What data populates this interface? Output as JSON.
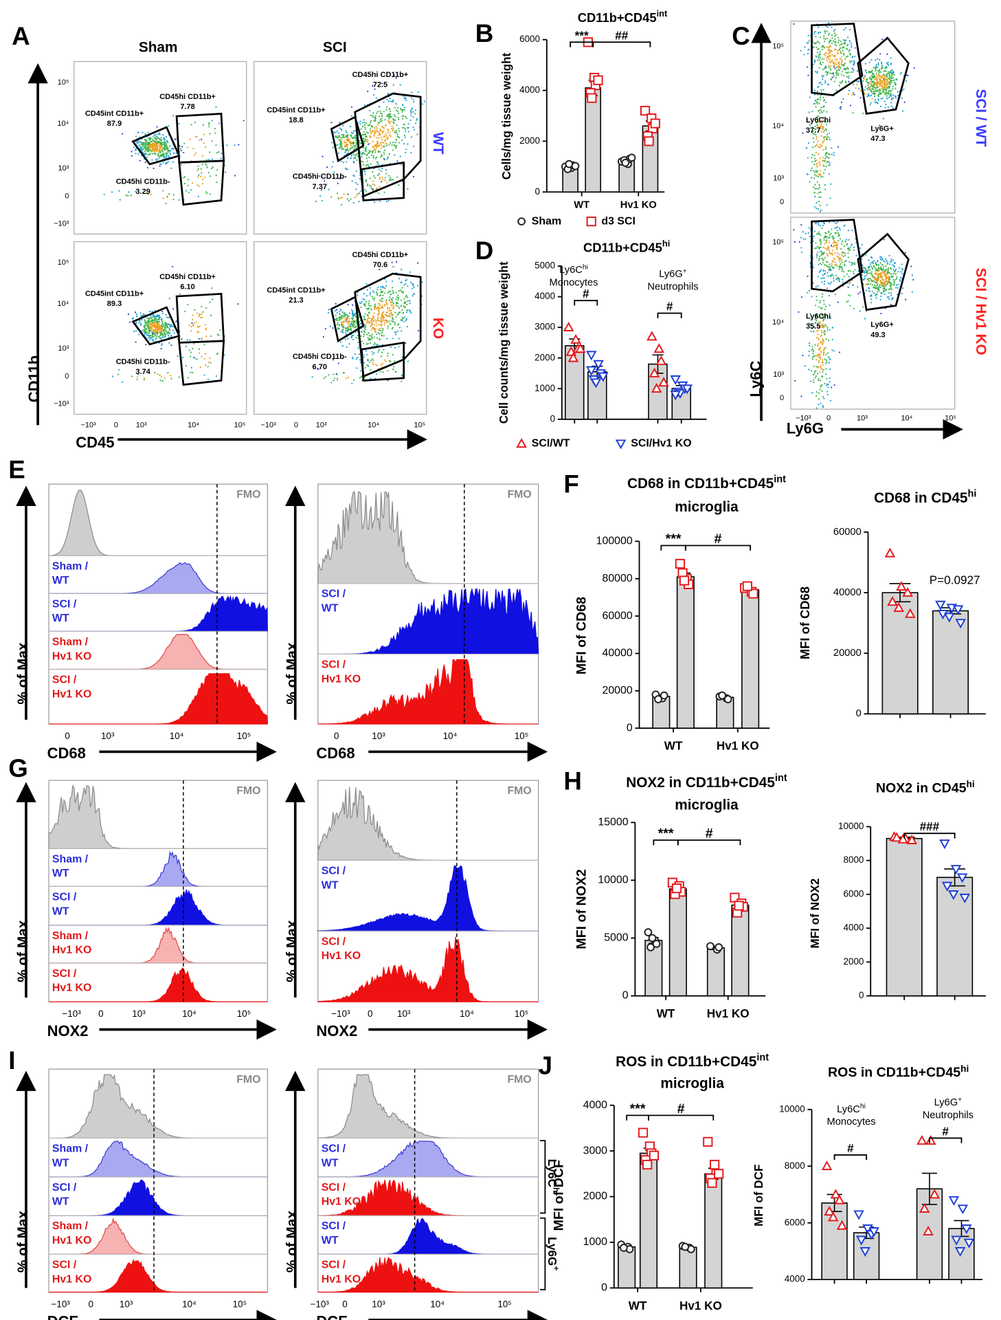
{
  "panel_letters": [
    "A",
    "B",
    "C",
    "D",
    "E",
    "F",
    "G",
    "H",
    "I",
    "J"
  ],
  "flow": {
    "A": {
      "col_titles": [
        "Sham",
        "SCI"
      ],
      "row_labels": [
        "WT",
        "KO"
      ],
      "row_colors": [
        "#3b3bff",
        "#ff2020"
      ],
      "y_label": "CD11b",
      "x_label": "CD45",
      "y_ticks": [
        "10⁵",
        "10⁴",
        "10³",
        "0",
        "−10³"
      ],
      "x_ticks": [
        "−10³",
        "0",
        "10³",
        "10⁴",
        "10⁵"
      ],
      "plots": [
        {
          "gates": [
            [
              "CD45int CD11b+",
              "87.9"
            ],
            [
              "CD45hi CD11b+",
              "7.78"
            ],
            [
              "CD45hi CD11b-",
              "3.29"
            ]
          ]
        },
        {
          "gates": [
            [
              "CD45int CD11b+",
              "18.8"
            ],
            [
              "CD45hi CD11b+",
              "72.5"
            ],
            [
              "CD45hi CD11b-",
              "7.37"
            ]
          ]
        },
        {
          "gates": [
            [
              "CD45int CD11b+",
              "89.3"
            ],
            [
              "CD45hi CD11b+",
              "6.10"
            ],
            [
              "CD45hi CD11b-",
              "3.74"
            ]
          ]
        },
        {
          "gates": [
            [
              "CD45int CD11b+",
              "21.3"
            ],
            [
              "CD45hi CD11b+",
              "70.6"
            ],
            [
              "CD45hi CD11b-",
              "6.70"
            ]
          ]
        }
      ]
    },
    "C": {
      "row_labels": [
        "SCI / WT",
        "SCI / Hv1 KO"
      ],
      "row_colors": [
        "#3b3bff",
        "#ff2020"
      ],
      "y_label": "Ly6C",
      "x_label": "Ly6G",
      "y_ticks": [
        "10⁵",
        "10⁴",
        "10³",
        "0"
      ],
      "x_ticks": [
        "−10³",
        "0",
        "10³",
        "10⁴",
        "10⁵"
      ],
      "plots": [
        {
          "gates": [
            [
              "Ly6Chi",
              "37.7"
            ],
            [
              "Ly6G+",
              "47.3"
            ]
          ]
        },
        {
          "gates": [
            [
              "Ly6Chi",
              "35.5"
            ],
            [
              "Ly6G+",
              "49.3"
            ]
          ]
        }
      ]
    }
  },
  "histograms": {
    "E": [
      {
        "fmo": "FMO",
        "tracks": [
          [
            "Sham /",
            "WT"
          ],
          [
            "SCI /",
            "WT"
          ],
          [
            "Sham /",
            "Hv1 KO"
          ],
          [
            "SCI /",
            "Hv1 KO"
          ]
        ],
        "x_ticks": [
          "0",
          "10³",
          "10⁴",
          "10⁵"
        ],
        "x_label": "CD68",
        "y_label": "% of Max"
      },
      {
        "fmo": "FMO",
        "tracks": [
          [
            "SCI /",
            "WT"
          ],
          [
            "SCI /",
            "Hv1 KO"
          ]
        ],
        "x_ticks": [
          "0",
          "10³",
          "10⁴",
          "10⁵"
        ],
        "x_label": "CD68",
        "y_label": "% of Max"
      }
    ],
    "G": [
      {
        "fmo": "FMO",
        "tracks": [
          [
            "Sham /",
            "WT"
          ],
          [
            "SCI /",
            "WT"
          ],
          [
            "Sham /",
            "Hv1 KO"
          ],
          [
            "SCI /",
            "Hv1 KO"
          ]
        ],
        "x_ticks": [
          "−10³",
          "0",
          "10³",
          "10⁴",
          "10⁵"
        ],
        "x_label": "NOX2",
        "y_label": "% of Max"
      },
      {
        "fmo": "FMO",
        "tracks": [
          [
            "SCI /",
            "WT"
          ],
          [
            "SCI /",
            "Hv1 KO"
          ]
        ],
        "x_ticks": [
          "−10³",
          "0",
          "10³",
          "10⁴",
          "10⁵"
        ],
        "x_label": "NOX2",
        "y_label": "% of Max"
      }
    ],
    "I": [
      {
        "fmo": "FMO",
        "tracks": [
          [
            "Sham /",
            "WT"
          ],
          [
            "SCI /",
            "WT"
          ],
          [
            "Sham /",
            "Hv1 KO"
          ],
          [
            "SCI /",
            "Hv1 KO"
          ]
        ],
        "x_ticks": [
          "−10³",
          "0",
          "10³",
          "10⁴",
          "10⁵"
        ],
        "x_label": "DCF",
        "y_label": "% of Max"
      },
      {
        "fmo": "FMO",
        "tracks": [
          [
            "SCI /",
            "WT"
          ],
          [
            "SCI /",
            "Hv1 KO"
          ],
          [
            "SCI /",
            "WT"
          ],
          [
            "SCI /",
            "Hv1 KO"
          ]
        ],
        "x_ticks": [
          "−10³",
          "0",
          "10³",
          "10⁴",
          "10⁵"
        ],
        "x_label": "DCF",
        "y_label": "% of Max",
        "side_labels": [
          [
            "Ly6C",
            "hi"
          ],
          [
            "Ly6G",
            "+"
          ]
        ]
      }
    ]
  },
  "chart_data": [
    {
      "type": "bar",
      "title": [
        "CD11b+CD45",
        "int"
      ],
      "ylabel": "Cells/mg tissue weight",
      "categories": [
        "WT",
        "Hv1 KO"
      ],
      "ylim": [
        0,
        6000
      ],
      "yticks": [
        0,
        2000,
        4000,
        6000
      ],
      "series": [
        {
          "name": "Sham",
          "marker": "circle",
          "color": "#222222",
          "values": [
            1000,
            1230
          ],
          "errors": [
            40,
            45
          ],
          "points": [
            [
              1000,
              950,
              1050,
              900,
              1100,
              1020
            ],
            [
              1200,
              1100,
              1300,
              1250,
              1150,
              1350
            ]
          ]
        },
        {
          "name": "d3 SCI",
          "marker": "square",
          "color": "#e31a1c",
          "values": [
            4100,
            2600
          ],
          "errors": [
            300,
            200
          ],
          "points": [
            [
              5900,
              4500,
              4200,
              3900,
              3700,
              4400
            ],
            [
              3200,
              2900,
              2500,
              2200,
              2000,
              2700
            ]
          ]
        }
      ],
      "annotations": [
        "***",
        "##"
      ]
    },
    {
      "type": "bar",
      "title": [
        "CD11b+CD45",
        "hi"
      ],
      "ylabel": "Cell counts/mg tissue weight",
      "categories": [
        null,
        null
      ],
      "ylim": [
        0,
        5000
      ],
      "yticks": [
        0,
        1000,
        2000,
        3000,
        4000,
        5000
      ],
      "group_labels": [
        [
          "Ly6C",
          "hi",
          "Monocytes"
        ],
        [
          "Ly6G",
          "+",
          "Neutrophils"
        ]
      ],
      "series": [
        {
          "name": "SCI/WT",
          "marker": "triangle",
          "color": "#e31a1c",
          "values": [
            2400,
            1800
          ],
          "errors": [
            220,
            300
          ],
          "points": [
            [
              3000,
              2600,
              2300,
              2200,
              2000,
              2300
            ],
            [
              2700,
              2300,
              1900,
              1500,
              1000,
              1200
            ]
          ]
        },
        {
          "name": "SCI/Hv1 KO",
          "marker": "triangle-down",
          "color": "#1f3fd6",
          "values": [
            1550,
            1000
          ],
          "errors": [
            180,
            100
          ],
          "points": [
            [
              2100,
              1800,
              1500,
              1300,
              1200,
              1400,
              1600
            ],
            [
              1300,
              1100,
              1000,
              900,
              850,
              1000,
              800
            ]
          ]
        }
      ],
      "annotations": [
        "#",
        "#"
      ]
    },
    {
      "type": "bar",
      "title": [
        "CD68 in CD11b+CD45",
        "int"
      ],
      "subtitle": "microglia",
      "ylabel": "MFI of CD68",
      "categories": [
        "WT",
        "Hv1 KO"
      ],
      "ylim": [
        0,
        100000
      ],
      "yticks": [
        0,
        20000,
        40000,
        60000,
        80000,
        100000
      ],
      "series": [
        {
          "marker": "circle",
          "color": "#222222",
          "values": [
            17000,
            16500
          ],
          "errors": [
            800,
            700
          ],
          "points": [
            [
              18000,
              16000,
              17500,
              15500
            ],
            [
              17000,
              16000,
              15500,
              17500
            ]
          ]
        },
        {
          "marker": "square",
          "color": "#e31a1c",
          "values": [
            81000,
            74000
          ],
          "errors": [
            2000,
            1000
          ],
          "points": [
            [
              88000,
              80000,
              77000,
              83000,
              79000
            ],
            [
              75000,
              73000,
              72000,
              76000
            ]
          ]
        }
      ],
      "annotations": [
        "***",
        "#"
      ]
    },
    {
      "type": "bar",
      "title": [
        "CD68 in CD45",
        "hi"
      ],
      "ylabel": "MFI of CD68",
      "categories": [
        null
      ],
      "ylim": [
        0,
        60000
      ],
      "yticks": [
        0,
        20000,
        40000,
        60000
      ],
      "series": [
        {
          "marker": "triangle",
          "color": "#e31a1c",
          "values": [
            40000
          ],
          "errors": [
            3000
          ],
          "points": [
            [
              53000,
              42000,
              40000,
              37000,
              35000,
              33000
            ]
          ]
        },
        {
          "marker": "triangle-down",
          "color": "#1f3fd6",
          "values": [
            34000
          ],
          "errors": [
            1000
          ],
          "points": [
            [
              36000,
              35000,
              34500,
              33000,
              32000,
              30000
            ]
          ]
        }
      ],
      "annotations": [
        "P=0.0927"
      ]
    },
    {
      "type": "bar",
      "title": [
        "NOX2 in CD11b+CD45",
        "int"
      ],
      "subtitle": "microglia",
      "ylabel": "MFI of NOX2",
      "categories": [
        "WT",
        "Hv1 KO"
      ],
      "ylim": [
        0,
        15000
      ],
      "yticks": [
        0,
        5000,
        10000,
        15000
      ],
      "series": [
        {
          "marker": "circle",
          "color": "#222222",
          "values": [
            4800,
            4150
          ],
          "errors": [
            250,
            150
          ],
          "points": [
            [
              5500,
              4800,
              4500,
              4200,
              5000
            ],
            [
              4300,
              4000,
              4200
            ]
          ]
        },
        {
          "marker": "square",
          "color": "#e31a1c",
          "values": [
            9250,
            7850
          ],
          "errors": [
            200,
            250
          ],
          "points": [
            [
              9800,
              9500,
              9000,
              8800,
              9300
            ],
            [
              8500,
              8000,
              7700,
              7200,
              7800
            ]
          ]
        }
      ],
      "annotations": [
        "***",
        "#"
      ]
    },
    {
      "type": "bar",
      "title": [
        "NOX2 in CD45",
        "hi"
      ],
      "ylabel": "MFI of NOX2",
      "categories": [
        null
      ],
      "ylim": [
        0,
        10000
      ],
      "yticks": [
        0,
        2000,
        4000,
        6000,
        8000,
        10000
      ],
      "series": [
        {
          "marker": "triangle",
          "color": "#e31a1c",
          "values": [
            9300
          ],
          "errors": [
            80
          ],
          "points": [
            [
              9400,
              9300,
              9200,
              9350,
              9250
            ]
          ]
        },
        {
          "marker": "triangle-down",
          "color": "#1f3fd6",
          "values": [
            7000
          ],
          "errors": [
            500
          ],
          "points": [
            [
              9000,
              7500,
              7000,
              6500,
              6000,
              5800
            ]
          ]
        }
      ],
      "annotations": [
        "###"
      ]
    },
    {
      "type": "bar",
      "title": [
        "ROS in CD11b+CD45",
        "int"
      ],
      "subtitle": "microglia",
      "ylabel": "MFI of DCF",
      "categories": [
        "WT",
        "Hv1 KO"
      ],
      "ylim": [
        0,
        4000
      ],
      "yticks": [
        0,
        1000,
        2000,
        3000,
        4000
      ],
      "series": [
        {
          "marker": "circle",
          "color": "#222222",
          "values": [
            900,
            890
          ],
          "errors": [
            40,
            30
          ],
          "points": [
            [
              950,
              900,
              850,
              880
            ],
            [
              920,
              880,
              850,
              900
            ]
          ]
        },
        {
          "marker": "square",
          "color": "#e31a1c",
          "values": [
            2950,
            2500
          ],
          "errors": [
            110,
            120
          ],
          "points": [
            [
              3400,
              3100,
              2950,
              2800,
              2700,
              2900
            ],
            [
              3200,
              2700,
              2500,
              2400,
              2300,
              2500
            ]
          ]
        }
      ],
      "annotations": [
        "***",
        "#"
      ]
    },
    {
      "type": "bar",
      "title": [
        "ROS in CD11b+CD45",
        "hi"
      ],
      "ylabel": "MFI of DCF",
      "categories": [
        null,
        null
      ],
      "ylim": [
        4000,
        10000
      ],
      "yticks": [
        4000,
        6000,
        8000,
        10000
      ],
      "group_labels": [
        [
          "Ly6C",
          "hi",
          "Monocytes"
        ],
        [
          "Ly6G",
          "+",
          "Neutrophils"
        ]
      ],
      "series": [
        {
          "marker": "triangle",
          "color": "#e31a1c",
          "values": [
            6700,
            7200
          ],
          "errors": [
            300,
            550
          ],
          "points": [
            [
              8000,
              7000,
              6800,
              6400,
              6200,
              5900
            ],
            [
              8900,
              8900,
              7000,
              6500,
              5700
            ]
          ]
        },
        {
          "marker": "triangle-down",
          "color": "#1f3fd6",
          "values": [
            5650,
            5800
          ],
          "errors": [
            200,
            280
          ],
          "points": [
            [
              6300,
              5800,
              5600,
              5400,
              5000,
              5700
            ],
            [
              6800,
              6500,
              5800,
              5400,
              5000,
              5300
            ]
          ]
        }
      ],
      "annotations": [
        "#",
        "#"
      ]
    }
  ]
}
